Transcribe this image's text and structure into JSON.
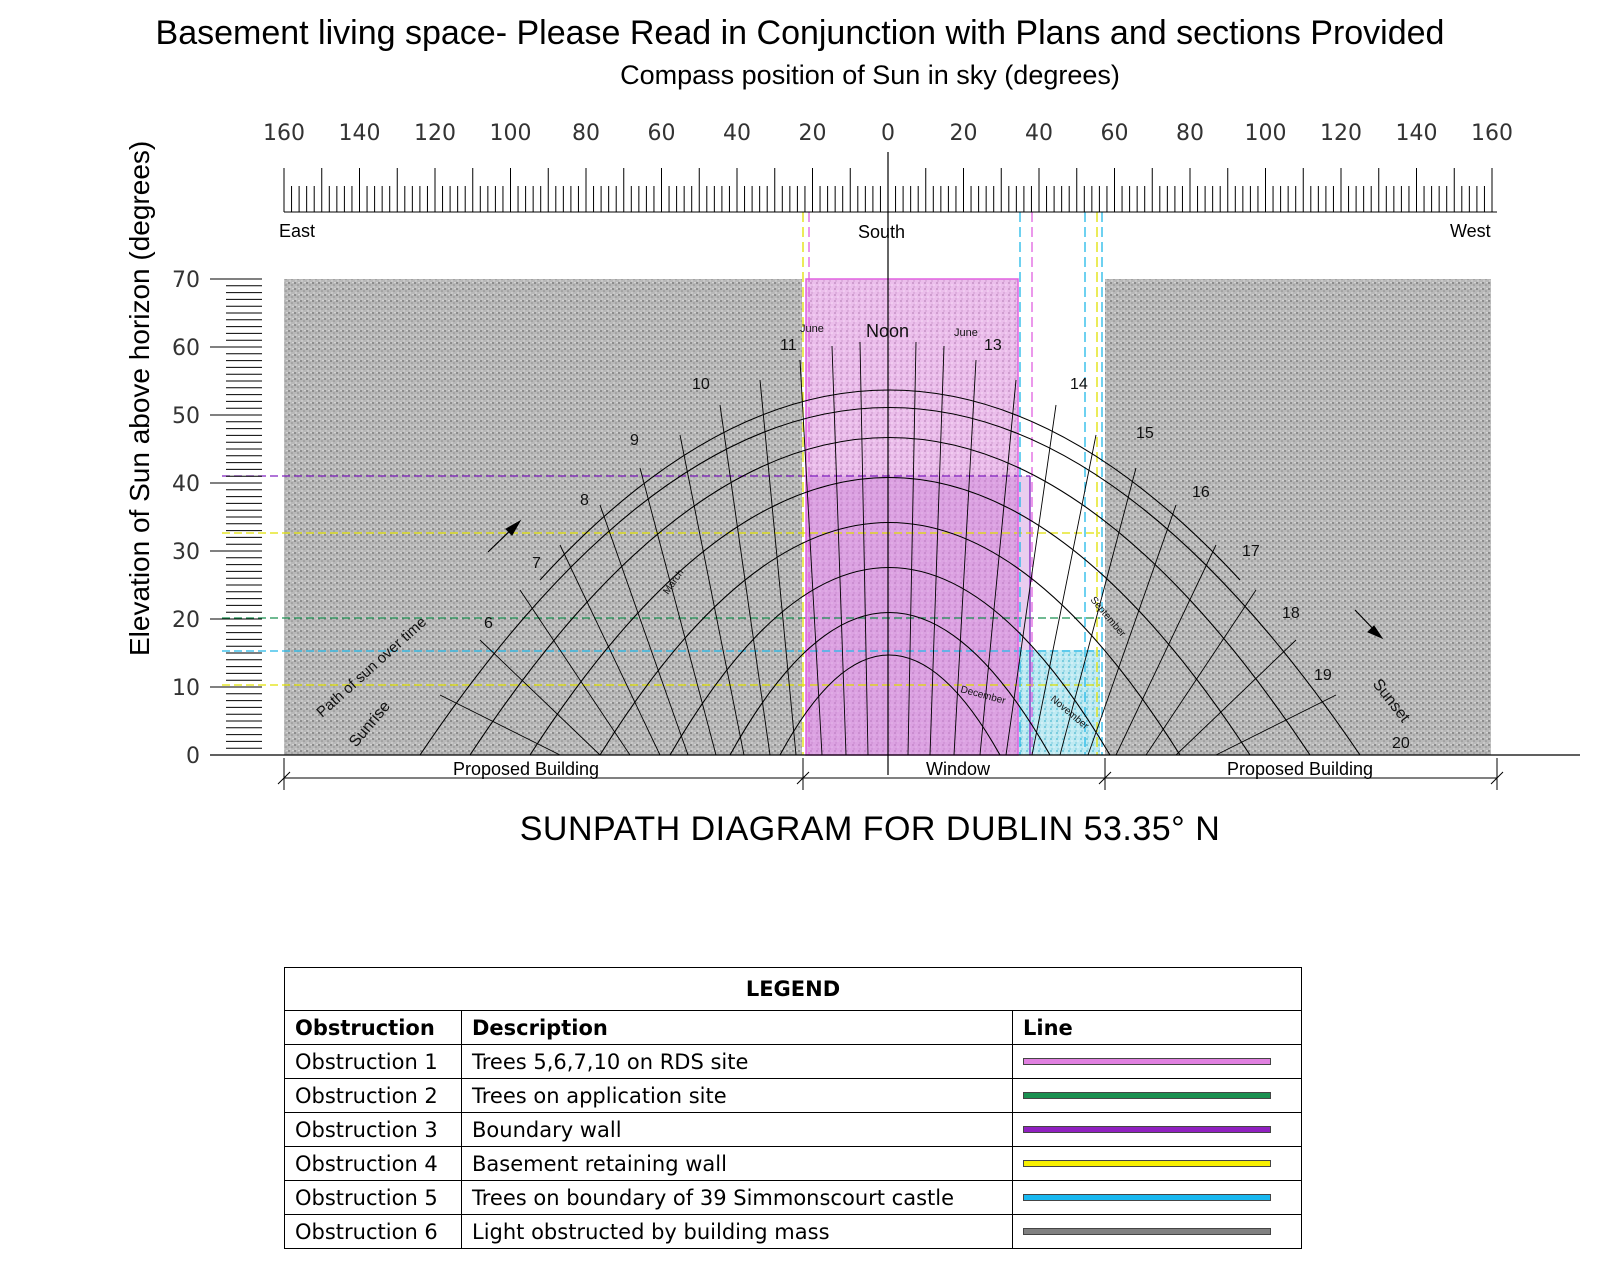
{
  "title": "Basement living space- Please Read in Conjunction with Plans and sections Provided",
  "subtitle": "Compass position of Sun in sky (degrees)",
  "y_axis_label": "Elevation of Sun above horizon (degrees)",
  "diagram_caption": "SUNPATH DIAGRAM FOR DUBLIN 53.35° N",
  "compass_labels": {
    "east": "East",
    "south": "South",
    "west": "West"
  },
  "x_ticks": [
    "160",
    "140",
    "120",
    "100",
    "80",
    "60",
    "40",
    "20",
    "0",
    "20",
    "40",
    "60",
    "80",
    "100",
    "120",
    "140",
    "160"
  ],
  "y_ticks": [
    "70",
    "60",
    "50",
    "40",
    "30",
    "20",
    "10",
    "0"
  ],
  "sunpath_labels": {
    "noon": "Noon",
    "june_left": "June",
    "june_right": "June",
    "hours": [
      "10",
      "11",
      "13",
      "14",
      "15",
      "16",
      "17",
      "18",
      "19",
      "8",
      "9",
      "7",
      "6",
      "20"
    ],
    "months": [
      "September",
      "November",
      "December",
      "March",
      "Sunrise",
      "Sunset",
      "Path of sun over time"
    ]
  },
  "bottom_segments": [
    {
      "label": "Proposed Building"
    },
    {
      "label": "Window"
    },
    {
      "label": "Proposed Building"
    }
  ],
  "colors": {
    "obstruction1": "#e060e0",
    "obstruction2": "#1a9050",
    "obstruction3": "#8020c0",
    "obstruction4": "#f0f000",
    "obstruction5": "#20b8e8",
    "obstruction6": "#808080"
  },
  "legend": {
    "title": "LEGEND",
    "headers": {
      "obstruction": "Obstruction",
      "description": "Description",
      "line": "Line"
    },
    "rows": [
      {
        "obstruction": "Obstruction 1",
        "description": "Trees 5,6,7,10 on RDS site",
        "color": "#e080e0"
      },
      {
        "obstruction": "Obstruction 2",
        "description": "Trees on application site",
        "color": "#1a9050"
      },
      {
        "obstruction": "Obstruction 3",
        "description": "Boundary wall",
        "color": "#9020c0"
      },
      {
        "obstruction": "Obstruction 4",
        "description": "Basement retaining wall",
        "color": "#f8f000"
      },
      {
        "obstruction": "Obstruction 5",
        "description": "Trees on boundary of 39 Simmonscourt castle",
        "color": "#18b8f0"
      },
      {
        "obstruction": "Obstruction 6",
        "description": "Light obstructed by building mass",
        "color": "#808080"
      }
    ]
  }
}
